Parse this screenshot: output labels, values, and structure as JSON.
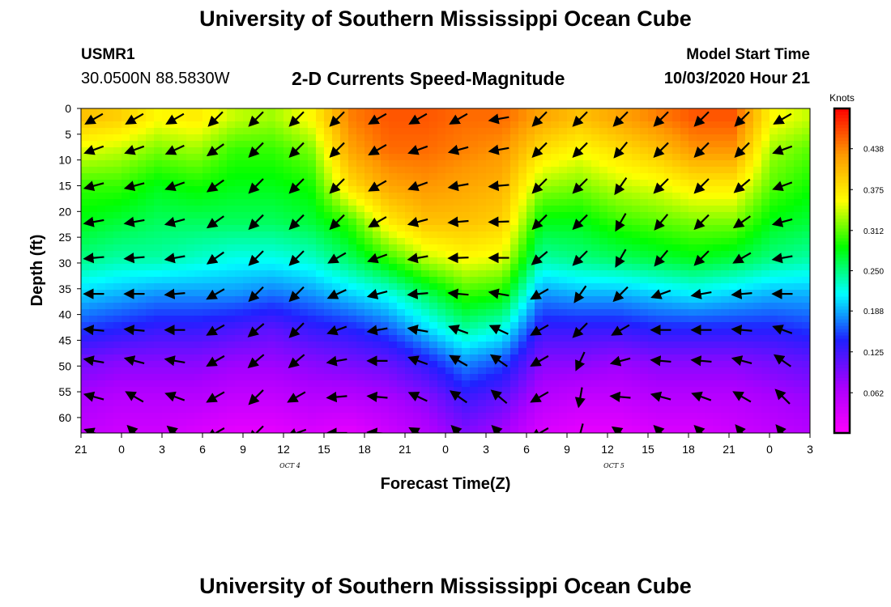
{
  "header": {
    "title": "University of Southern Mississippi Ocean Cube",
    "station": "USMR1",
    "coordinates": "30.0500N 88.5830W",
    "subtitle": "2-D Currents Speed-Magnitude",
    "model_start_label": "Model Start Time",
    "model_start_value": "10/03/2020 Hour 21"
  },
  "footer": {
    "title": "University of Southern Mississippi Ocean Cube"
  },
  "chart_data": {
    "type": "heatmap",
    "xlabel": "Forecast Time(Z)",
    "ylabel": "Depth (ft)",
    "x_tick_labels": [
      "21",
      "0",
      "3",
      "6",
      "9",
      "12",
      "15",
      "18",
      "21",
      "0",
      "3",
      "6",
      "9",
      "12",
      "15",
      "18",
      "21",
      "0",
      "3"
    ],
    "date_labels": [
      {
        "text": "OCT 4",
        "tick_index": 5
      },
      {
        "text": "OCT 5",
        "tick_index": 13
      }
    ],
    "y_ticks": [
      0,
      5,
      10,
      15,
      20,
      25,
      30,
      35,
      40,
      45,
      50,
      55,
      60
    ],
    "ylim": [
      0,
      63
    ],
    "colorbar": {
      "title": "Knots",
      "labels": [
        "0.438",
        "0.375",
        "0.312",
        "0.250",
        "0.188",
        "0.125",
        "0.062"
      ],
      "range": [
        0,
        0.5
      ],
      "colors": [
        "#ff00ff",
        "#a800ff",
        "#2020ff",
        "#00ffff",
        "#00ff00",
        "#ffff00",
        "#ff9900",
        "#ff0000"
      ]
    },
    "depths_ft": [
      2,
      8,
      15,
      22,
      29,
      36,
      43,
      49,
      56,
      63
    ],
    "speed_by_time": [
      [
        0.4,
        0.35,
        0.3,
        0.28,
        0.25,
        0.2,
        0.15,
        0.1,
        0.07,
        0.05
      ],
      [
        0.39,
        0.34,
        0.3,
        0.27,
        0.24,
        0.19,
        0.14,
        0.09,
        0.06,
        0.04
      ],
      [
        0.36,
        0.32,
        0.28,
        0.26,
        0.24,
        0.18,
        0.13,
        0.09,
        0.06,
        0.04
      ],
      [
        0.37,
        0.33,
        0.29,
        0.26,
        0.23,
        0.18,
        0.13,
        0.09,
        0.06,
        0.03
      ],
      [
        0.34,
        0.3,
        0.28,
        0.26,
        0.22,
        0.18,
        0.12,
        0.08,
        0.05,
        0.02
      ],
      [
        0.33,
        0.3,
        0.28,
        0.26,
        0.22,
        0.17,
        0.11,
        0.08,
        0.05,
        0.02
      ],
      [
        0.36,
        0.32,
        0.29,
        0.27,
        0.23,
        0.18,
        0.13,
        0.09,
        0.06,
        0.03
      ],
      [
        0.44,
        0.42,
        0.38,
        0.3,
        0.26,
        0.2,
        0.14,
        0.1,
        0.06,
        0.02
      ],
      [
        0.46,
        0.45,
        0.42,
        0.37,
        0.3,
        0.22,
        0.16,
        0.11,
        0.07,
        0.04
      ],
      [
        0.46,
        0.45,
        0.43,
        0.4,
        0.34,
        0.26,
        0.2,
        0.14,
        0.09,
        0.06
      ],
      [
        0.45,
        0.44,
        0.42,
        0.4,
        0.36,
        0.3,
        0.24,
        0.18,
        0.13,
        0.09
      ],
      [
        0.45,
        0.43,
        0.41,
        0.39,
        0.35,
        0.29,
        0.22,
        0.16,
        0.11,
        0.07
      ],
      [
        0.42,
        0.38,
        0.33,
        0.28,
        0.24,
        0.18,
        0.13,
        0.09,
        0.06,
        0.03
      ],
      [
        0.4,
        0.36,
        0.32,
        0.28,
        0.25,
        0.19,
        0.13,
        0.09,
        0.05,
        0.02
      ],
      [
        0.42,
        0.38,
        0.34,
        0.3,
        0.26,
        0.19,
        0.13,
        0.08,
        0.05,
        0.02
      ],
      [
        0.44,
        0.4,
        0.35,
        0.31,
        0.27,
        0.2,
        0.14,
        0.09,
        0.06,
        0.03
      ],
      [
        0.46,
        0.43,
        0.37,
        0.32,
        0.28,
        0.21,
        0.14,
        0.09,
        0.06,
        0.03
      ],
      [
        0.46,
        0.43,
        0.37,
        0.32,
        0.27,
        0.2,
        0.14,
        0.09,
        0.06,
        0.04
      ],
      [
        0.36,
        0.33,
        0.31,
        0.28,
        0.25,
        0.19,
        0.14,
        0.1,
        0.07,
        0.05
      ],
      [
        0.34,
        0.31,
        0.29,
        0.27,
        0.24,
        0.19,
        0.15,
        0.11,
        0.08,
        0.06
      ]
    ],
    "vectors": {
      "x_positions": [
        "22Z",
        "1Z",
        "4Z",
        "7Z",
        "10Z",
        "13Z",
        "16Z",
        "19Z",
        "22Z",
        "1Z",
        "4Z",
        "7Z",
        "10Z",
        "13Z",
        "16Z",
        "19Z",
        "22Z",
        "1Z"
      ],
      "row_depths_ft": [
        2,
        8,
        15,
        22,
        29,
        36,
        43,
        49,
        56,
        63
      ],
      "direction_deg": [
        [
          240,
          240,
          240,
          225,
          225,
          225,
          225,
          240,
          240,
          240,
          260,
          225,
          225,
          225,
          225,
          225,
          225,
          240
        ],
        [
          250,
          250,
          245,
          235,
          225,
          225,
          225,
          240,
          250,
          255,
          260,
          225,
          225,
          220,
          225,
          225,
          225,
          250
        ],
        [
          255,
          255,
          250,
          235,
          225,
          225,
          225,
          240,
          250,
          260,
          265,
          225,
          225,
          215,
          225,
          225,
          230,
          250
        ],
        [
          260,
          260,
          255,
          235,
          225,
          225,
          225,
          240,
          255,
          265,
          268,
          225,
          225,
          210,
          220,
          225,
          235,
          255
        ],
        [
          265,
          265,
          260,
          235,
          225,
          225,
          240,
          250,
          260,
          268,
          270,
          230,
          225,
          210,
          220,
          225,
          240,
          260
        ],
        [
          270,
          270,
          265,
          240,
          225,
          225,
          245,
          255,
          265,
          275,
          280,
          240,
          215,
          225,
          250,
          260,
          265,
          270
        ],
        [
          275,
          275,
          270,
          240,
          230,
          225,
          250,
          260,
          280,
          290,
          295,
          240,
          225,
          240,
          270,
          270,
          275,
          290
        ],
        [
          280,
          285,
          280,
          240,
          230,
          230,
          260,
          270,
          290,
          300,
          305,
          240,
          205,
          255,
          275,
          275,
          285,
          305
        ],
        [
          285,
          300,
          290,
          240,
          225,
          240,
          265,
          275,
          295,
          305,
          310,
          240,
          190,
          275,
          285,
          290,
          300,
          315
        ],
        [
          290,
          315,
          310,
          240,
          225,
          250,
          270,
          275,
          300,
          315,
          315,
          240,
          195,
          305,
          315,
          315,
          320,
          320
        ]
      ]
    }
  }
}
